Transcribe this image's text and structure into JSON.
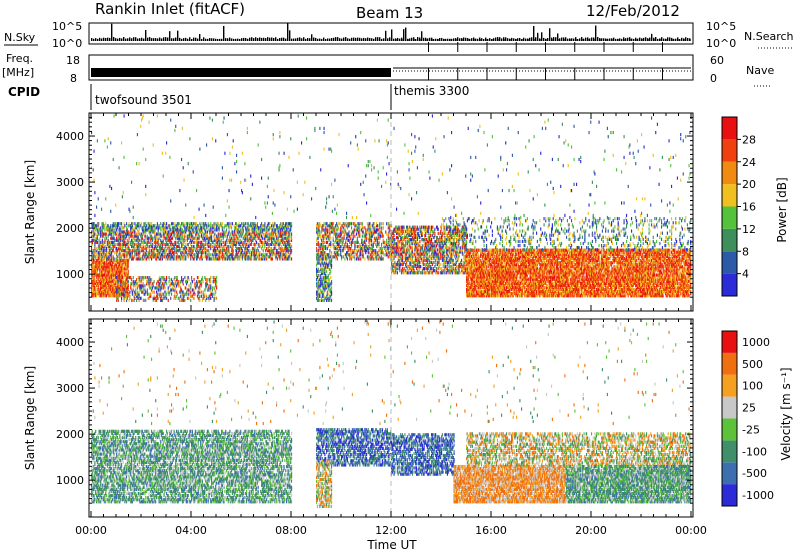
{
  "header": {
    "station": "Rankin Inlet (fitACF)",
    "beam": "Beam 13",
    "date": "12/Feb/2012"
  },
  "noise_panel": {
    "left_label": "N.Sky",
    "right_label": "N.Search",
    "left_ticks": [
      "10^5",
      "10^0"
    ],
    "right_ticks": [
      "10^5",
      "10^0"
    ]
  },
  "freq_panel": {
    "left_label_top": "Freq.",
    "left_label_unit": "[MHz]",
    "left_ticks": [
      "18",
      "8"
    ],
    "right_label": "Nave",
    "right_ticks": [
      "60",
      "0"
    ]
  },
  "cpid": {
    "label": "CPID",
    "modes": [
      {
        "name": "twofsound 3501",
        "start_hour": 0
      },
      {
        "name": "themis 3300",
        "start_hour": 12
      }
    ]
  },
  "colors": {
    "power_scale": [
      "#2b2bd8",
      "#2d5aa8",
      "#3f8f5c",
      "#55c23b",
      "#f0c020",
      "#f08a10",
      "#f04010",
      "#e81010"
    ],
    "velocity_scale": [
      "#2b2bd8",
      "#3d6fb0",
      "#3f8f6a",
      "#5cc23a",
      "#c8c8c8",
      "#f4a020",
      "#f07010",
      "#e81010"
    ]
  },
  "chart_data": [
    {
      "type": "heatmap",
      "title": "",
      "xlabel": "",
      "ylabel": "Slant Range [km]",
      "x_range_hours": [
        0,
        24
      ],
      "y_range_km": [
        200,
        4500
      ],
      "yticks": [
        1000,
        2000,
        3000,
        4000
      ],
      "colorbar": {
        "label": "Power [dB]",
        "ticks": [
          4,
          8,
          12,
          16,
          20,
          24,
          28
        ],
        "range": [
          0,
          32
        ]
      }
    },
    {
      "type": "heatmap",
      "title": "",
      "xlabel": "Time UT",
      "ylabel": "Slant Range [km]",
      "x_range_hours": [
        0,
        24
      ],
      "y_range_km": [
        200,
        4500
      ],
      "yticks": [
        1000,
        2000,
        3000,
        4000
      ],
      "xticks": [
        "00:00",
        "04:00",
        "08:00",
        "12:00",
        "16:00",
        "20:00",
        "00:00"
      ],
      "colorbar": {
        "label": "Velocity [m s⁻¹]",
        "ticks": [
          "1000",
          "500",
          "100",
          "25",
          "-25",
          "-100",
          "-500",
          "-1000"
        ]
      }
    }
  ]
}
